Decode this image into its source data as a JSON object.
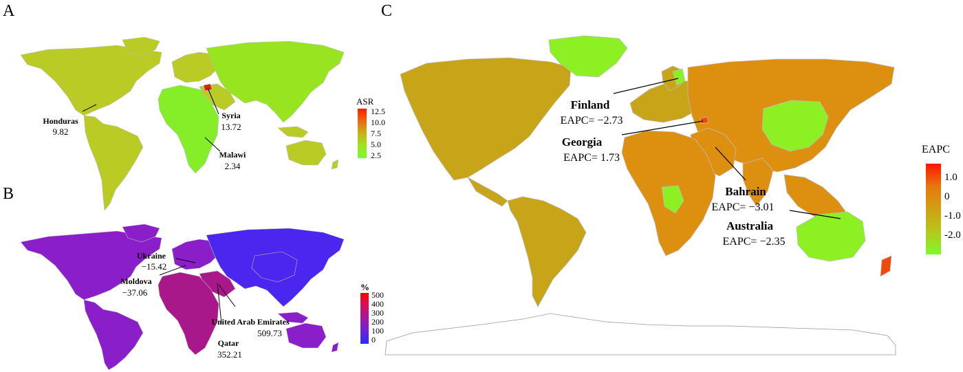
{
  "panels": {
    "a": {
      "letter": "A",
      "legend": {
        "title": "ASR",
        "ticks": [
          "12.5",
          "10.0",
          "7.5",
          "5.0",
          "2.5"
        ],
        "colors": [
          "#ff1a00",
          "#ea6a12",
          "#c8b219",
          "#9ee41f",
          "#7dfa2c"
        ]
      },
      "callouts": [
        {
          "name": "Honduras",
          "value": "9.82"
        },
        {
          "name": "Syria",
          "value": "13.72"
        },
        {
          "name": "Malawi",
          "value": "2.34"
        }
      ]
    },
    "b": {
      "letter": "B",
      "legend": {
        "title": "%",
        "ticks": [
          "500",
          "400",
          "300",
          "200",
          "100",
          "0"
        ],
        "colors": [
          "#ff0000",
          "#d4105e",
          "#a01aa2",
          "#6a22d8",
          "#2a2cff"
        ]
      },
      "callouts": [
        {
          "name": "Ukraine",
          "value": "−15.42"
        },
        {
          "name": "Moldova",
          "value": "−37.06"
        },
        {
          "name": "United Arab Emirates",
          "value": "509.73"
        },
        {
          "name": "Qatar",
          "value": "352.21"
        }
      ]
    },
    "c": {
      "letter": "C",
      "legend": {
        "title": "EAPC",
        "ticks": [
          "1.0",
          "0",
          "-1.0",
          "-2.0"
        ],
        "colors": [
          "#ff1400",
          "#e6780e",
          "#cfa114",
          "#b6c81a",
          "#7dfa2c"
        ]
      },
      "callouts": [
        {
          "name": "Finland",
          "value": "EAPC= −2.73"
        },
        {
          "name": "Georgia",
          "value": "EAPC= 1.73"
        },
        {
          "name": "Bahrain",
          "value": "EAPC= −3.01"
        },
        {
          "name": "Australia",
          "value": "EAPC= −2.35"
        }
      ]
    }
  },
  "map_colors": {
    "a_base": "#b9cb24",
    "a_green": "#98e421",
    "a_africa": "#86ee28",
    "a_hot": "#e0220a",
    "b_base": "#8a1ec8",
    "b_blue": "#4a26ee",
    "b_magenta": "#a8188a",
    "b_hot": "#d3115a",
    "c_base": "#c7a418",
    "c_orange": "#dd8f10",
    "c_green": "#8cf022",
    "c_red": "#f04a08",
    "border": "#bdbdbd",
    "antarctica": "#ffffff"
  }
}
